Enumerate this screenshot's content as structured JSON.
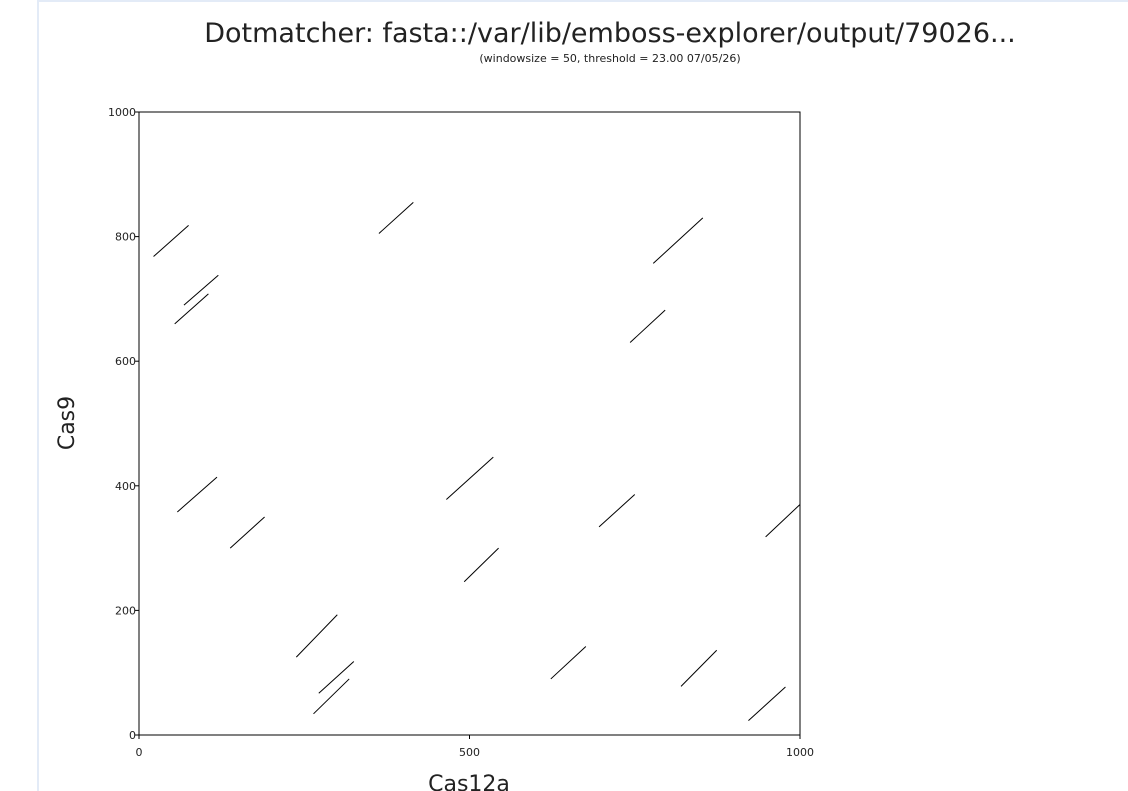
{
  "chart_data": {
    "type": "scatter",
    "title": "Dotmatcher: fasta::/var/lib/emboss-explorer/output/79026...",
    "subtitle": "(windowsize = 50, threshold = 23.00  07/05/26)",
    "xlabel": "Cas12a",
    "ylabel": "Cas9",
    "xlim": [
      0,
      1000
    ],
    "ylim": [
      0,
      1000
    ],
    "x_ticks": [
      "0",
      "500",
      "1000"
    ],
    "y_ticks": [
      "0",
      "200",
      "400",
      "600",
      "800",
      "1000"
    ],
    "grid": false,
    "segments": [
      {
        "x": [
          22,
          75
        ],
        "y": [
          768,
          818
        ]
      },
      {
        "x": [
          68,
          120
        ],
        "y": [
          690,
          738
        ]
      },
      {
        "x": [
          54,
          105
        ],
        "y": [
          660,
          708
        ]
      },
      {
        "x": [
          363,
          415
        ],
        "y": [
          805,
          855
        ]
      },
      {
        "x": [
          778,
          853
        ],
        "y": [
          757,
          830
        ]
      },
      {
        "x": [
          743,
          796
        ],
        "y": [
          630,
          682
        ]
      },
      {
        "x": [
          58,
          118
        ],
        "y": [
          358,
          414
        ]
      },
      {
        "x": [
          138,
          190
        ],
        "y": [
          300,
          350
        ]
      },
      {
        "x": [
          465,
          536
        ],
        "y": [
          378,
          446
        ]
      },
      {
        "x": [
          696,
          750
        ],
        "y": [
          334,
          386
        ]
      },
      {
        "x": [
          492,
          544
        ],
        "y": [
          246,
          300
        ]
      },
      {
        "x": [
          948,
          1000
        ],
        "y": [
          318,
          370
        ]
      },
      {
        "x": [
          238,
          300
        ],
        "y": [
          125,
          193
        ]
      },
      {
        "x": [
          272,
          325
        ],
        "y": [
          67,
          118
        ]
      },
      {
        "x": [
          264,
          318
        ],
        "y": [
          34,
          90
        ]
      },
      {
        "x": [
          623,
          676
        ],
        "y": [
          90,
          142
        ]
      },
      {
        "x": [
          820,
          874
        ],
        "y": [
          78,
          136
        ]
      },
      {
        "x": [
          922,
          978
        ],
        "y": [
          23,
          77
        ]
      }
    ]
  }
}
